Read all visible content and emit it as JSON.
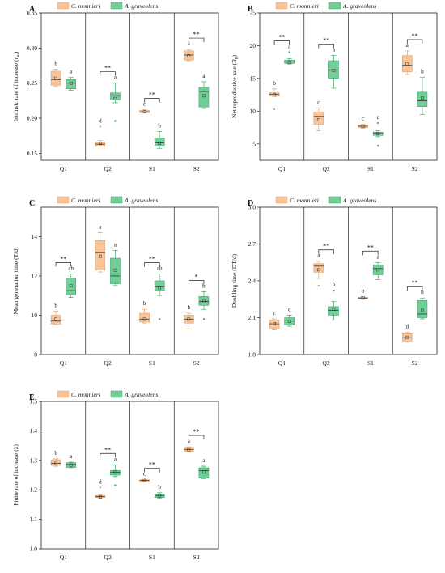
{
  "legend": [
    {
      "name": "C. monnieri",
      "color": "#f9c598",
      "stroke": "#e6a268"
    },
    {
      "name": "A. graveolens",
      "color": "#6fcf97",
      "stroke": "#3aa868"
    }
  ],
  "chart_data": [
    {
      "type": "box",
      "panel": "A",
      "ylabel": "Intrinsic rate of increase (r_m)",
      "ylim": [
        0.14,
        0.35
      ],
      "yticks": [
        "0.15",
        "0.20",
        "0.25",
        "0.30",
        "0.35"
      ],
      "categories": [
        "Q1",
        "Q2",
        "S1",
        "S2"
      ],
      "series": [
        {
          "name": "C. monnieri",
          "boxes": [
            {
              "min": 0.245,
              "q1": 0.247,
              "median": 0.255,
              "q3": 0.267,
              "max": 0.27,
              "mean": 0.257,
              "outliers": [],
              "letter": "b"
            },
            {
              "min": 0.16,
              "q1": 0.16,
              "median": 0.163,
              "q3": 0.166,
              "max": 0.168,
              "mean": 0.164,
              "outliers": [
                0.188
              ],
              "letter": "d"
            },
            {
              "min": 0.208,
              "q1": 0.208,
              "median": 0.209,
              "q3": 0.211,
              "max": 0.212,
              "mean": 0.209,
              "outliers": [],
              "letter": "c"
            },
            {
              "min": 0.282,
              "q1": 0.283,
              "median": 0.29,
              "q3": 0.296,
              "max": 0.298,
              "mean": 0.289,
              "outliers": [],
              "letter": "a"
            }
          ]
        },
        {
          "name": "A. graveolens",
          "boxes": [
            {
              "min": 0.24,
              "q1": 0.242,
              "median": 0.25,
              "q3": 0.255,
              "max": 0.258,
              "mean": 0.25,
              "outliers": [],
              "letter": "a"
            },
            {
              "min": 0.222,
              "q1": 0.226,
              "median": 0.232,
              "q3": 0.236,
              "max": 0.25,
              "mean": 0.228,
              "outliers": [
                0.196
              ],
              "letter": "a"
            },
            {
              "min": 0.157,
              "q1": 0.16,
              "median": 0.165,
              "q3": 0.172,
              "max": 0.181,
              "mean": 0.164,
              "outliers": [],
              "letter": "b"
            },
            {
              "min": 0.214,
              "q1": 0.216,
              "median": 0.238,
              "q3": 0.244,
              "max": 0.252,
              "mean": 0.232,
              "outliers": [],
              "letter": "a"
            }
          ]
        }
      ],
      "significance": [
        "",
        "**",
        "**",
        "**"
      ]
    },
    {
      "type": "box",
      "panel": "B",
      "ylabel": "Net reproductive rate (R_0)",
      "ylim": [
        2.5,
        25
      ],
      "yticks": [
        "5",
        "10",
        "15",
        "20",
        "25"
      ],
      "categories": [
        "Q1",
        "Q2",
        "S1",
        "S2"
      ],
      "series": [
        {
          "name": "C. monnieri",
          "boxes": [
            {
              "min": 12.2,
              "q1": 12.3,
              "median": 12.6,
              "q3": 12.8,
              "max": 13.4,
              "mean": 12.5,
              "outliers": [
                10.3
              ],
              "letter": "b"
            },
            {
              "min": 7.0,
              "q1": 8.0,
              "median": 9.2,
              "q3": 9.9,
              "max": 10.5,
              "mean": 8.7,
              "outliers": [],
              "letter": "c"
            },
            {
              "min": 7.4,
              "q1": 7.5,
              "median": 7.7,
              "q3": 7.9,
              "max": 8.0,
              "mean": 7.7,
              "outliers": [],
              "letter": "c"
            },
            {
              "min": 15.6,
              "q1": 16.0,
              "median": 17.0,
              "q3": 18.5,
              "max": 19.2,
              "mean": 17.2,
              "outliers": [],
              "letter": "a"
            }
          ]
        },
        {
          "name": "A. graveolens",
          "boxes": [
            {
              "min": 17.2,
              "q1": 17.3,
              "median": 17.5,
              "q3": 17.8,
              "max": 18.0,
              "mean": 17.5,
              "outliers": [
                19.0
              ],
              "letter": "a"
            },
            {
              "min": 13.5,
              "q1": 15.0,
              "median": 16.3,
              "q3": 17.7,
              "max": 18.5,
              "mean": 16.2,
              "outliers": [],
              "letter": "a"
            },
            {
              "min": 6.1,
              "q1": 6.3,
              "median": 6.6,
              "q3": 6.8,
              "max": 7.0,
              "mean": 6.6,
              "outliers": [
                4.7,
                8.2
              ],
              "letter": "c"
            },
            {
              "min": 9.5,
              "q1": 10.7,
              "median": 11.6,
              "q3": 12.9,
              "max": 15.2,
              "mean": 12.0,
              "outliers": [],
              "letter": "b"
            }
          ]
        }
      ],
      "significance": [
        "**",
        "**",
        "",
        "**"
      ]
    },
    {
      "type": "box",
      "panel": "C",
      "ylabel": "Mean generation time (T/d)",
      "ylim": [
        8,
        15.5
      ],
      "yticks": [
        "8",
        "10",
        "12",
        "14"
      ],
      "categories": [
        "Q1",
        "Q2",
        "S1",
        "S2"
      ],
      "series": [
        {
          "name": "C. monnieri",
          "boxes": [
            {
              "min": 9.5,
              "q1": 9.55,
              "median": 9.7,
              "q3": 10.0,
              "max": 10.2,
              "mean": 9.8,
              "outliers": [],
              "letter": "b"
            },
            {
              "min": 12.2,
              "q1": 12.3,
              "median": 13.2,
              "q3": 13.8,
              "max": 14.2,
              "mean": 13.0,
              "outliers": [],
              "letter": "a"
            },
            {
              "min": 9.6,
              "q1": 9.65,
              "median": 9.8,
              "q3": 10.1,
              "max": 10.3,
              "mean": 9.8,
              "outliers": [],
              "letter": "b"
            },
            {
              "min": 9.3,
              "q1": 9.6,
              "median": 9.8,
              "q3": 10.0,
              "max": 10.1,
              "mean": 9.8,
              "outliers": [],
              "letter": "b"
            }
          ]
        },
        {
          "name": "A. graveolens",
          "boxes": [
            {
              "min": 10.9,
              "q1": 11.05,
              "median": 11.25,
              "q3": 11.9,
              "max": 12.1,
              "mean": 11.5,
              "outliers": [],
              "letter": "ab"
            },
            {
              "min": 11.5,
              "q1": 11.6,
              "median": 12.0,
              "q3": 12.9,
              "max": 13.3,
              "mean": 12.3,
              "outliers": [],
              "letter": "a"
            },
            {
              "min": 11.0,
              "q1": 11.25,
              "median": 11.45,
              "q3": 11.75,
              "max": 12.1,
              "mean": 11.4,
              "outliers": [
                9.8
              ],
              "letter": "ab"
            },
            {
              "min": 10.3,
              "q1": 10.5,
              "median": 10.7,
              "q3": 10.95,
              "max": 11.2,
              "mean": 10.7,
              "outliers": [
                9.8
              ],
              "letter": "b"
            }
          ]
        }
      ],
      "significance": [
        "**",
        "",
        "**",
        "*"
      ]
    },
    {
      "type": "box",
      "panel": "D",
      "ylabel": "Doubling time (DT/d)",
      "ylim": [
        1.8,
        3.0
      ],
      "yticks": [
        "1.8",
        "2.1",
        "2.4",
        "2.7",
        "3.0"
      ],
      "categories": [
        "Q1",
        "Q2",
        "S1",
        "S2"
      ],
      "series": [
        {
          "name": "C. monnieri",
          "boxes": [
            {
              "min": 2.0,
              "q1": 2.01,
              "median": 2.05,
              "q3": 2.08,
              "max": 2.09,
              "mean": 2.05,
              "outliers": [],
              "letter": "c"
            },
            {
              "min": 2.42,
              "q1": 2.47,
              "median": 2.52,
              "q3": 2.54,
              "max": 2.56,
              "mean": 2.49,
              "outliers": [
                2.36
              ],
              "letter": "a"
            },
            {
              "min": 2.25,
              "q1": 2.255,
              "median": 2.26,
              "q3": 2.265,
              "max": 2.27,
              "mean": 2.26,
              "outliers": [],
              "letter": "b"
            },
            {
              "min": 1.9,
              "q1": 1.91,
              "median": 1.94,
              "q3": 1.97,
              "max": 1.98,
              "mean": 1.94,
              "outliers": [],
              "letter": "d"
            }
          ]
        },
        {
          "name": "A. graveolens",
          "boxes": [
            {
              "min": 2.03,
              "q1": 2.04,
              "median": 2.08,
              "q3": 2.1,
              "max": 2.12,
              "mean": 2.07,
              "outliers": [],
              "letter": "c"
            },
            {
              "min": 2.08,
              "q1": 2.12,
              "median": 2.16,
              "q3": 2.19,
              "max": 2.23,
              "mean": 2.17,
              "outliers": [
                2.32
              ],
              "letter": "b"
            },
            {
              "min": 2.41,
              "q1": 2.45,
              "median": 2.5,
              "q3": 2.53,
              "max": 2.55,
              "mean": 2.49,
              "outliers": [],
              "letter": "a"
            },
            {
              "min": 2.09,
              "q1": 2.1,
              "median": 2.13,
              "q3": 2.24,
              "max": 2.26,
              "mean": 2.16,
              "outliers": [],
              "letter": "b"
            }
          ]
        }
      ],
      "significance": [
        "",
        "**",
        "**",
        "**"
      ]
    },
    {
      "type": "box",
      "panel": "E",
      "ylabel": "Finite rate of increase (λ)",
      "ylim": [
        1.0,
        1.5
      ],
      "yticks": [
        "1.0",
        "1.1",
        "1.2",
        "1.3",
        "1.4",
        "1.5"
      ],
      "categories": [
        "Q1",
        "Q2",
        "S1",
        "S2"
      ],
      "series": [
        {
          "name": "C. monnieri",
          "boxes": [
            {
              "min": 1.28,
              "q1": 1.283,
              "median": 1.29,
              "q3": 1.302,
              "max": 1.305,
              "mean": 1.29,
              "outliers": [],
              "letter": "b"
            },
            {
              "min": 1.172,
              "q1": 1.174,
              "median": 1.177,
              "q3": 1.181,
              "max": 1.184,
              "mean": 1.176,
              "outliers": [
                1.208
              ],
              "letter": "d"
            },
            {
              "min": 1.229,
              "q1": 1.23,
              "median": 1.232,
              "q3": 1.234,
              "max": 1.235,
              "mean": 1.232,
              "outliers": [],
              "letter": "c"
            },
            {
              "min": 1.328,
              "q1": 1.33,
              "median": 1.337,
              "q3": 1.344,
              "max": 1.346,
              "mean": 1.336,
              "outliers": [],
              "letter": "a"
            }
          ]
        },
        {
          "name": "A. graveolens",
          "boxes": [
            {
              "min": 1.275,
              "q1": 1.276,
              "median": 1.286,
              "q3": 1.292,
              "max": 1.294,
              "mean": 1.284,
              "outliers": [],
              "letter": "a"
            },
            {
              "min": 1.245,
              "q1": 1.25,
              "median": 1.26,
              "q3": 1.266,
              "max": 1.285,
              "mean": 1.26,
              "outliers": [
                1.215
              ],
              "letter": "a"
            },
            {
              "min": 1.171,
              "q1": 1.174,
              "median": 1.181,
              "q3": 1.186,
              "max": 1.19,
              "mean": 1.18,
              "outliers": [],
              "letter": "b"
            },
            {
              "min": 1.238,
              "q1": 1.24,
              "median": 1.265,
              "q3": 1.275,
              "max": 1.28,
              "mean": 1.26,
              "outliers": [],
              "letter": "a"
            }
          ]
        }
      ],
      "significance": [
        "",
        "**",
        "**",
        "**"
      ]
    }
  ]
}
